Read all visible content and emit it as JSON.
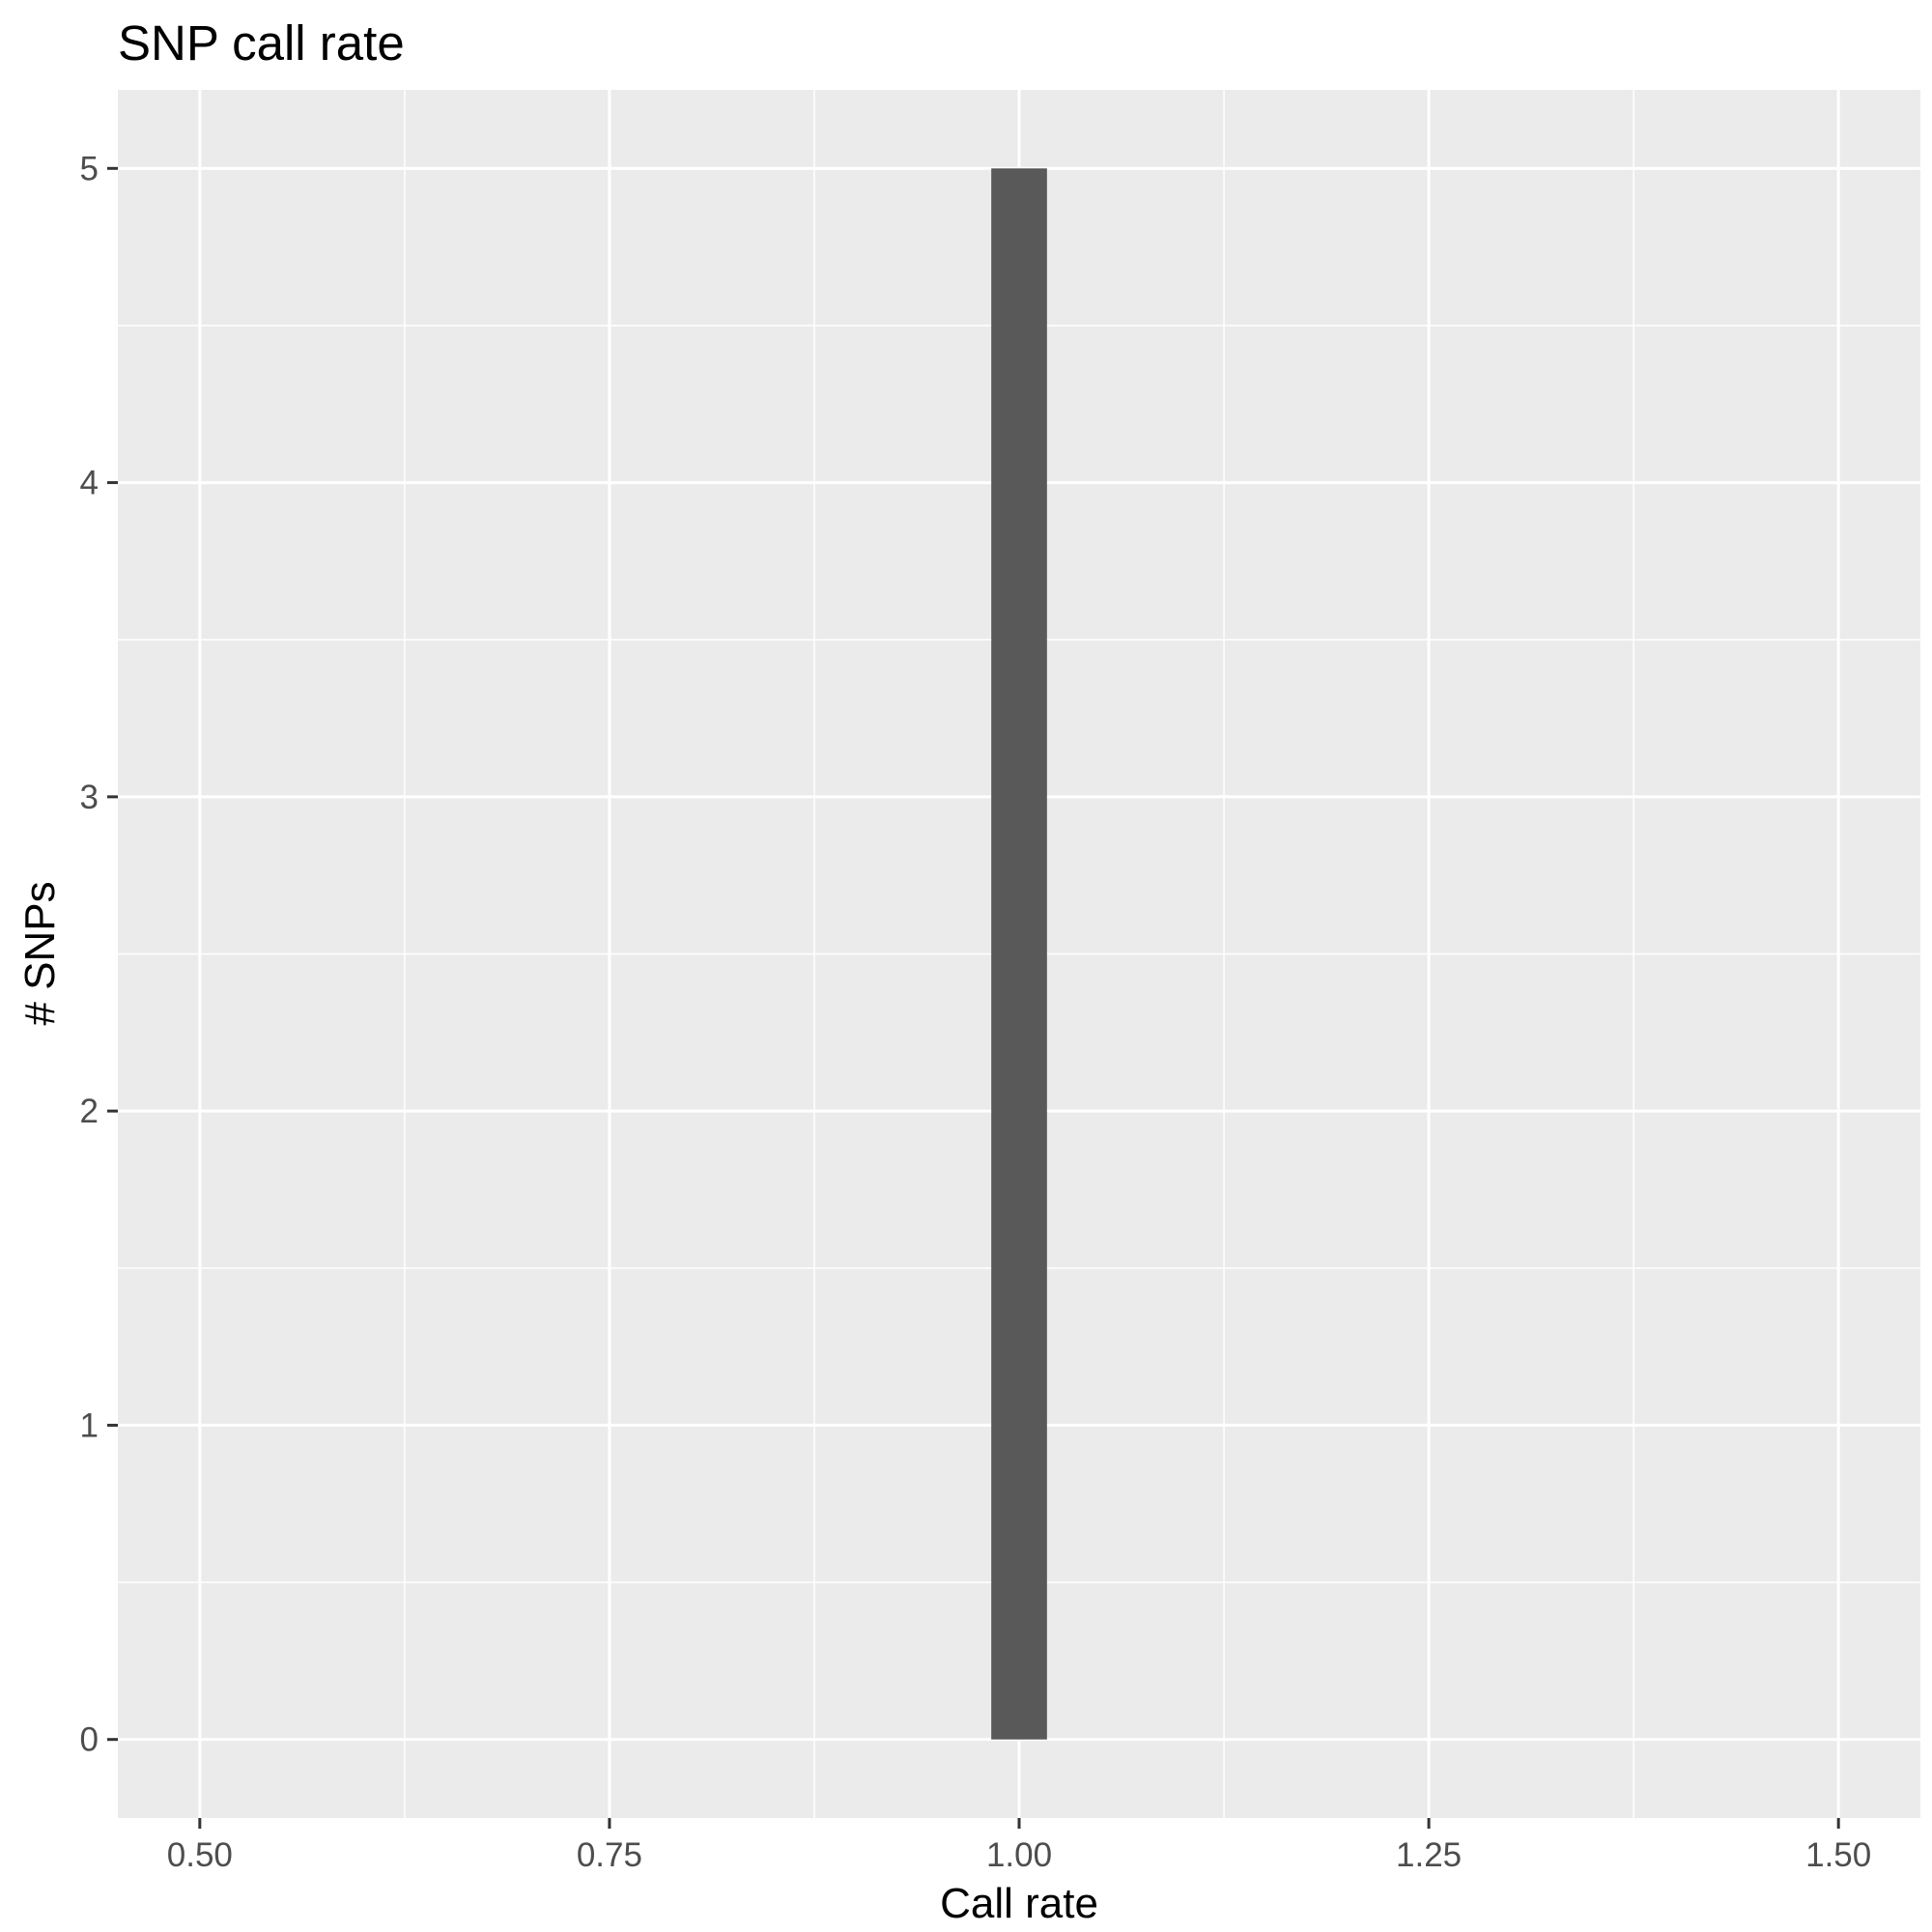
{
  "chart_data": {
    "type": "bar",
    "title": "SNP call rate",
    "xlabel": "Call rate",
    "ylabel": "# SNPs",
    "xlim": [
      0.45,
      1.55
    ],
    "ylim": [
      -0.25,
      5.25
    ],
    "x_ticks": [
      0.5,
      0.75,
      1.0,
      1.25,
      1.5
    ],
    "x_tick_labels": [
      "0.50",
      "0.75",
      "1.00",
      "1.25",
      "1.50"
    ],
    "y_ticks": [
      0,
      1,
      2,
      3,
      4,
      5
    ],
    "y_tick_labels": [
      "0",
      "1",
      "2",
      "3",
      "4",
      "5"
    ],
    "bars": [
      {
        "x_min": 0.983,
        "x_max": 1.017,
        "value": 5
      }
    ],
    "grid": true,
    "colors": {
      "panel_background": "#ebebeb",
      "grid_major": "#ffffff",
      "grid_minor": "#ffffff",
      "bar_fill": "#595959",
      "tick_text": "#4d4d4d",
      "tick_mark": "#333333"
    }
  }
}
